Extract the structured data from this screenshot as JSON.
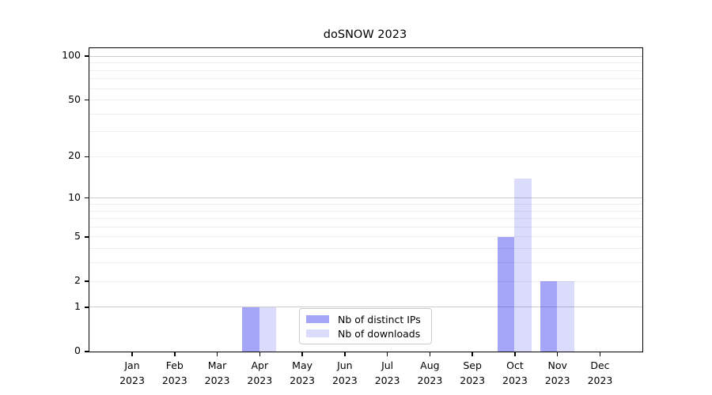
{
  "chart_data": {
    "type": "bar",
    "title": "doSNOW 2023",
    "categories": [
      "Jan",
      "Feb",
      "Mar",
      "Apr",
      "May",
      "Jun",
      "Jul",
      "Aug",
      "Sep",
      "Oct",
      "Nov",
      "Dec"
    ],
    "year_label": "2023",
    "series": [
      {
        "name": "Nb of distinct IPs",
        "color": "rgba(0,0,235,0.35)",
        "values": [
          0,
          0,
          0,
          1,
          0,
          0,
          0,
          0,
          0,
          5,
          2,
          0
        ]
      },
      {
        "name": "Nb of downloads",
        "color": "rgba(0,0,235,0.14)",
        "values": [
          0,
          0,
          0,
          1,
          0,
          0,
          0,
          0,
          0,
          14,
          2,
          0
        ]
      }
    ],
    "xlabel": "",
    "ylabel": "",
    "yscale": "log1p",
    "ylim": [
      0,
      113.5
    ],
    "yticks": [
      0,
      1,
      2,
      5,
      10,
      20,
      50,
      100
    ],
    "major_grid_values": [
      1,
      10,
      100
    ],
    "minor_grid_values": [
      2,
      3,
      4,
      5,
      6,
      7,
      8,
      9,
      20,
      30,
      40,
      50,
      60,
      70,
      80,
      90
    ],
    "grid": true,
    "legend_position": "lower center",
    "colors": {
      "spine": "#000000",
      "major_grid": "#cccccc",
      "minor_grid": "#ededed",
      "legend_border": "#cccccc"
    }
  }
}
